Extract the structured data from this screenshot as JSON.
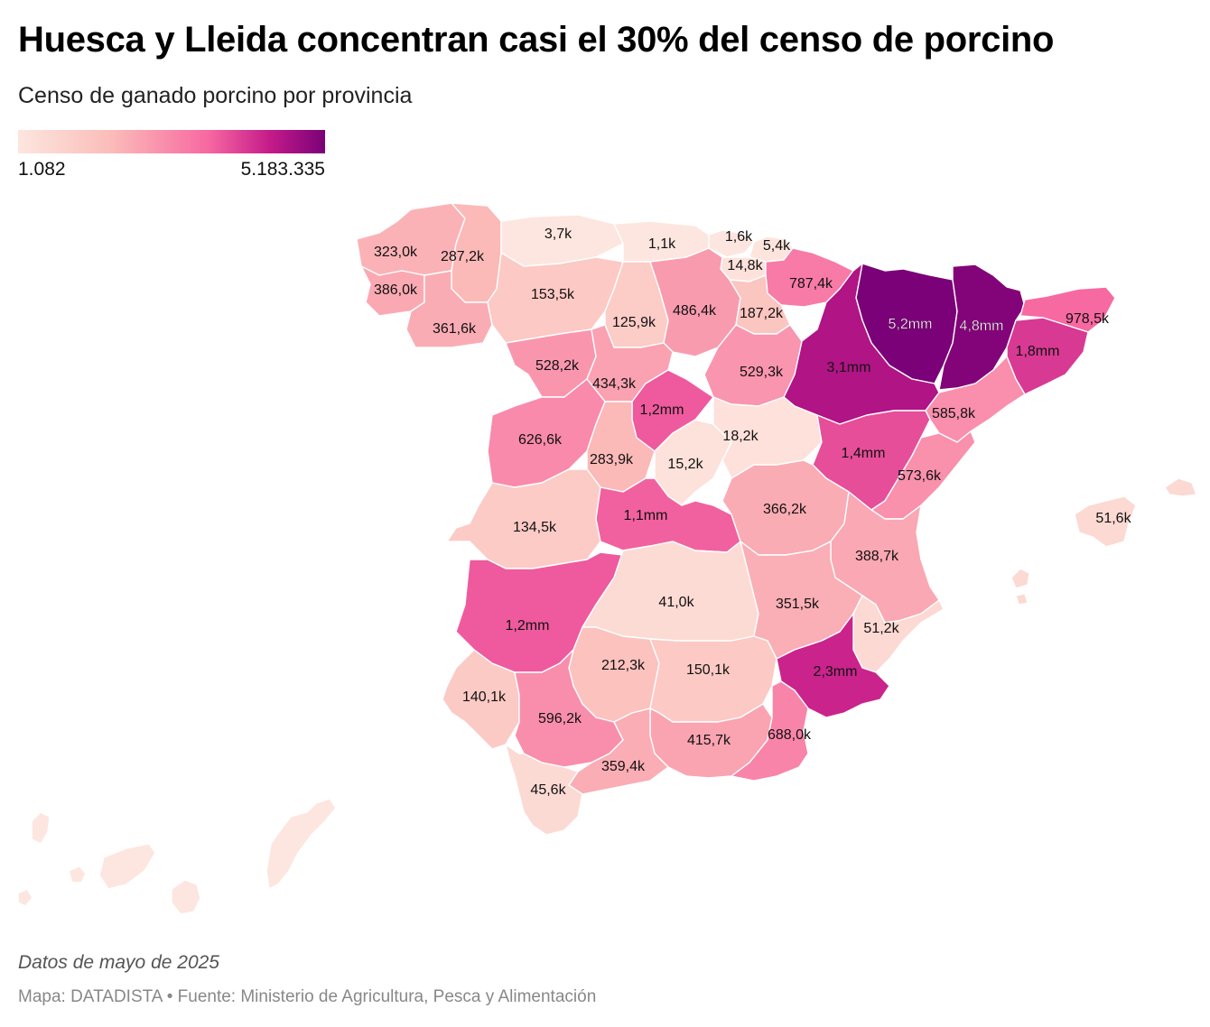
{
  "header": {
    "title": "Huesca y Lleida concentran casi el 30% del censo de porcino",
    "subtitle": "Censo de ganado porcino por provincia"
  },
  "legend": {
    "min_label": "1.082",
    "max_label": "5.183.335",
    "min_value": 1082,
    "max_value": 5183335,
    "color_stops": [
      "#fde6df",
      "#fbbdb9",
      "#f768a1",
      "#c51b8a",
      "#7a0177"
    ]
  },
  "chart_data": {
    "type": "choropleth",
    "title": "Huesca y Lleida concentran casi el 30% del censo de porcino",
    "subtitle": "Censo de ganado porcino por provincia",
    "units": "cabezas de ganado porcino",
    "regions": [
      {
        "id": "a-coruna",
        "label": "323,0k",
        "value": 323000
      },
      {
        "id": "lugo",
        "label": "287,2k",
        "value": 287200
      },
      {
        "id": "asturias",
        "label": "3,7k",
        "value": 3700
      },
      {
        "id": "cantabria",
        "label": "1,1k",
        "value": 1100
      },
      {
        "id": "bizkaia",
        "label": "1,6k",
        "value": 1600
      },
      {
        "id": "gipuzkoa",
        "label": "5,4k",
        "value": 5400
      },
      {
        "id": "araba",
        "label": "14,8k",
        "value": 14800
      },
      {
        "id": "navarra",
        "label": "787,4k",
        "value": 787400
      },
      {
        "id": "pontevedra",
        "label": "386,0k",
        "value": 386000
      },
      {
        "id": "ourense",
        "label": "361,6k",
        "value": 361600
      },
      {
        "id": "leon",
        "label": "153,5k",
        "value": 153500
      },
      {
        "id": "palencia",
        "label": "125,9k",
        "value": 125900
      },
      {
        "id": "burgos",
        "label": "486,4k",
        "value": 486400
      },
      {
        "id": "la-rioja",
        "label": "187,2k",
        "value": 187200
      },
      {
        "id": "huesca",
        "label": "5,2mm",
        "value": 5183335
      },
      {
        "id": "lleida",
        "label": "4,8mm",
        "value": 4800000
      },
      {
        "id": "girona",
        "label": "978,5k",
        "value": 978500
      },
      {
        "id": "barcelona",
        "label": "1,8mm",
        "value": 1800000
      },
      {
        "id": "zaragoza",
        "label": "3,1mm",
        "value": 3100000
      },
      {
        "id": "zamora",
        "label": "528,2k",
        "value": 528200
      },
      {
        "id": "valladolid",
        "label": "434,3k",
        "value": 434300
      },
      {
        "id": "soria",
        "label": "529,3k",
        "value": 529300
      },
      {
        "id": "segovia",
        "label": "1,2mm",
        "value": 1200000
      },
      {
        "id": "tarragona",
        "label": "585,8k",
        "value": 585800
      },
      {
        "id": "salamanca",
        "label": "626,6k",
        "value": 626600
      },
      {
        "id": "avila",
        "label": "283,9k",
        "value": 283900
      },
      {
        "id": "madrid",
        "label": "15,2k",
        "value": 15200
      },
      {
        "id": "guadalajara",
        "label": "18,2k",
        "value": 18200
      },
      {
        "id": "teruel",
        "label": "1,4mm",
        "value": 1400000
      },
      {
        "id": "castellon",
        "label": "573,6k",
        "value": 573600
      },
      {
        "id": "caceres",
        "label": "134,5k",
        "value": 134500
      },
      {
        "id": "toledo",
        "label": "1,1mm",
        "value": 1100000
      },
      {
        "id": "cuenca",
        "label": "366,2k",
        "value": 366200
      },
      {
        "id": "valencia",
        "label": "388,7k",
        "value": 388700
      },
      {
        "id": "baleares",
        "label": "51,6k",
        "value": 51600
      },
      {
        "id": "badajoz",
        "label": "1,2mm",
        "value": 1200000
      },
      {
        "id": "ciudad-real",
        "label": "41,0k",
        "value": 41000
      },
      {
        "id": "albacete",
        "label": "351,5k",
        "value": 351500
      },
      {
        "id": "alicante",
        "label": "51,2k",
        "value": 51200
      },
      {
        "id": "cordoba",
        "label": "212,3k",
        "value": 212300
      },
      {
        "id": "jaen",
        "label": "150,1k",
        "value": 150100
      },
      {
        "id": "murcia",
        "label": "2,3mm",
        "value": 2300000
      },
      {
        "id": "huelva",
        "label": "140,1k",
        "value": 140100
      },
      {
        "id": "sevilla",
        "label": "596,2k",
        "value": 596200
      },
      {
        "id": "granada",
        "label": "415,7k",
        "value": 415700
      },
      {
        "id": "almeria",
        "label": "688,0k",
        "value": 688000
      },
      {
        "id": "malaga",
        "label": "359,4k",
        "value": 359400
      },
      {
        "id": "cadiz",
        "label": "45,6k",
        "value": 45600
      },
      {
        "id": "las-palmas",
        "label": "",
        "value": 1082
      },
      {
        "id": "santa-cruz-de-tenerife",
        "label": "",
        "value": 1082
      }
    ]
  },
  "footer": {
    "note": "Datos de mayo de 2025",
    "source": "Mapa: DATADISTA • Fuente: Ministerio de Agricultura, Pesca y Alimentación"
  }
}
